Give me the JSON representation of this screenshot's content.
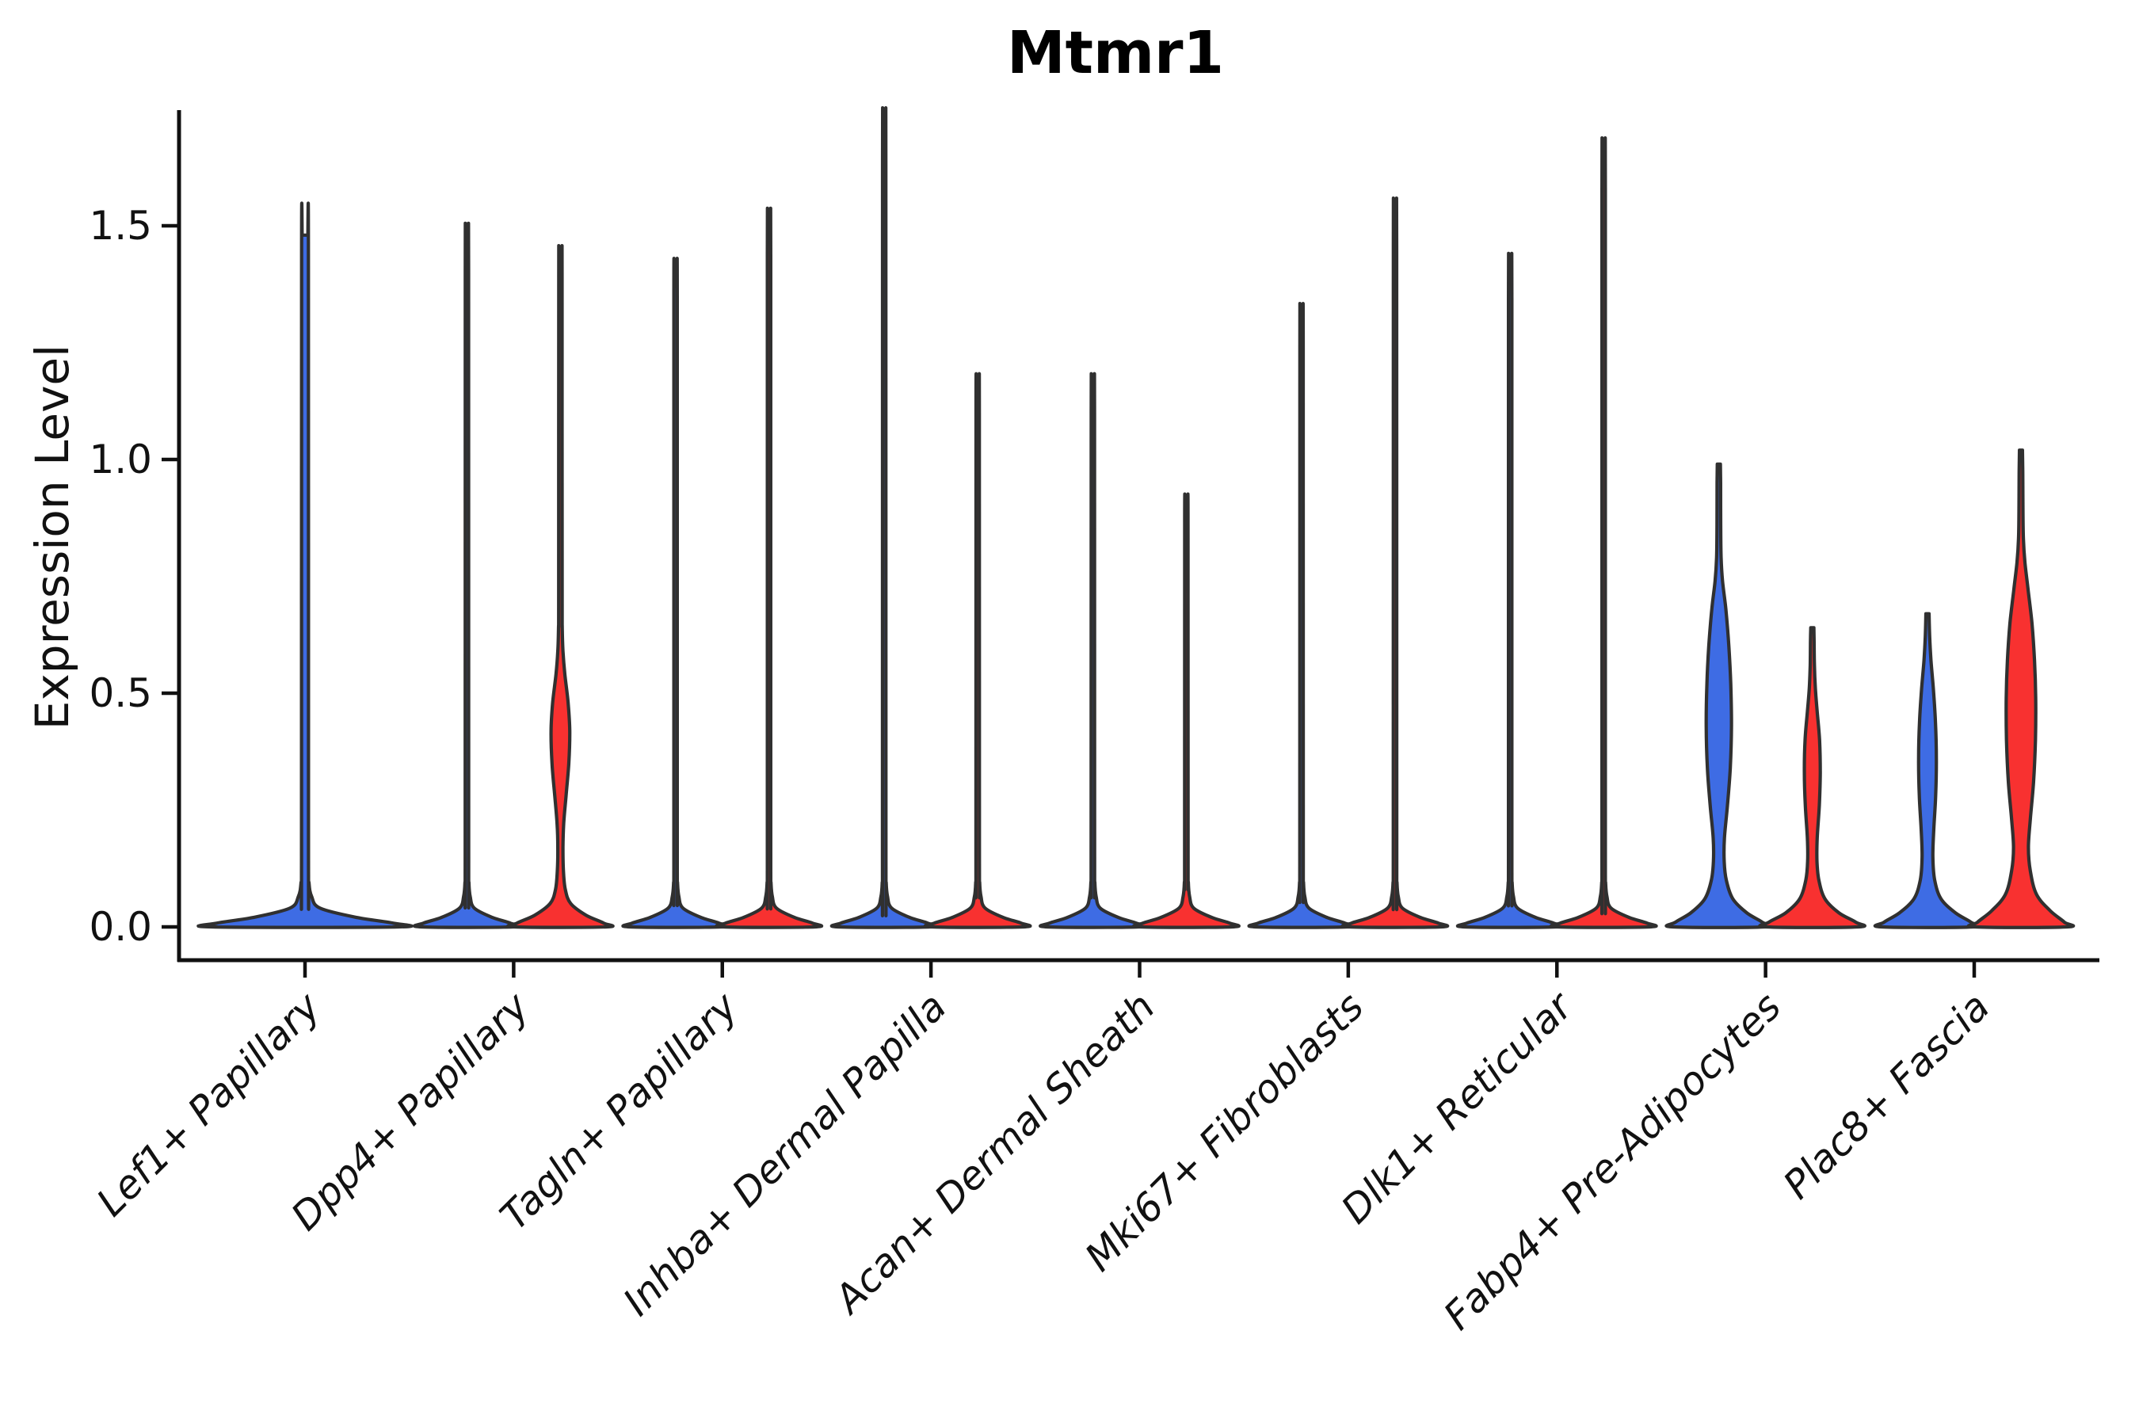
{
  "chart_data": {
    "type": "violin",
    "title": "Mtmr1",
    "ylabel": "Expression Level",
    "xlabel": "",
    "grid": false,
    "legend": "none",
    "yticks": {
      "values": [
        0.0,
        0.5,
        1.0,
        1.5
      ],
      "labels": [
        "0.0",
        "0.5",
        "1.0",
        "1.5"
      ]
    },
    "ylim": [
      -0.07,
      1.75
    ],
    "palette": {
      "blue": "#3E6CE4",
      "red": "#F83130",
      "outline": "#303030",
      "axis": "#111111",
      "text": "#111111"
    },
    "categories": [
      {
        "label": "Lef1+ Papillary",
        "violins": [
          {
            "condition": "single",
            "fill": "blue",
            "max": 1.48,
            "shape": "spike",
            "single": true
          }
        ]
      },
      {
        "label": "Dpp4+ Papillary",
        "violins": [
          {
            "condition": "blue",
            "fill": "blue",
            "max": 1.44,
            "shape": "spike"
          },
          {
            "condition": "red",
            "fill": "red",
            "max": 1.44,
            "shape": "body",
            "profile": [
              [
                0,
                0.98
              ],
              [
                0.008,
                0.93
              ],
              [
                0.025,
                0.55
              ],
              [
                0.05,
                0.22
              ],
              [
                0.08,
                0.105
              ],
              [
                0.12,
                0.065
              ],
              [
                0.17,
                0.055
              ],
              [
                0.22,
                0.07
              ],
              [
                0.28,
                0.12
              ],
              [
                0.35,
                0.18
              ],
              [
                0.42,
                0.2
              ],
              [
                0.48,
                0.165
              ],
              [
                0.54,
                0.095
              ],
              [
                0.59,
                0.055
              ],
              [
                0.64,
                0.04
              ],
              [
                0.72,
                0.037
              ],
              [
                1.39,
                0.036
              ],
              [
                1.44,
                0.033
              ]
            ]
          }
        ]
      },
      {
        "label": "Tagln+ Papillary",
        "violins": [
          {
            "condition": "blue",
            "fill": "blue",
            "max": 1.37,
            "shape": "spike"
          },
          {
            "condition": "red",
            "fill": "red",
            "max": 1.47,
            "shape": "spike"
          }
        ]
      },
      {
        "label": "Inhba+ Dermal Papilla",
        "violins": [
          {
            "condition": "blue",
            "fill": "blue",
            "max": 1.67,
            "shape": "spike"
          },
          {
            "condition": "red",
            "fill": "red",
            "max": 1.14,
            "shape": "spike"
          }
        ]
      },
      {
        "label": "Acan+ Dermal Sheath",
        "violins": [
          {
            "condition": "blue",
            "fill": "blue",
            "max": 1.14,
            "shape": "spike"
          },
          {
            "condition": "red",
            "fill": "red",
            "max": 0.9,
            "shape": "spike"
          }
        ]
      },
      {
        "label": "Mki67+ Fibroblasts",
        "violins": [
          {
            "condition": "blue",
            "fill": "blue",
            "max": 1.28,
            "shape": "spike"
          },
          {
            "condition": "red",
            "fill": "red",
            "max": 1.49,
            "shape": "spike"
          }
        ]
      },
      {
        "label": "Dlk1+ Reticular",
        "violins": [
          {
            "condition": "blue",
            "fill": "blue",
            "max": 1.38,
            "shape": "spike"
          },
          {
            "condition": "red",
            "fill": "red",
            "max": 1.61,
            "shape": "spike"
          }
        ]
      },
      {
        "label": "Fabp4+ Pre-Adipocytes",
        "violins": [
          {
            "condition": "blue",
            "fill": "blue",
            "max": 0.99,
            "shape": "body",
            "profile": [
              [
                0,
                0.98
              ],
              [
                0.01,
                0.93
              ],
              [
                0.03,
                0.6
              ],
              [
                0.06,
                0.3
              ],
              [
                0.1,
                0.16
              ],
              [
                0.14,
                0.115
              ],
              [
                0.19,
                0.12
              ],
              [
                0.26,
                0.185
              ],
              [
                0.34,
                0.245
              ],
              [
                0.43,
                0.27
              ],
              [
                0.52,
                0.255
              ],
              [
                0.6,
                0.215
              ],
              [
                0.68,
                0.15
              ],
              [
                0.74,
                0.08
              ],
              [
                0.79,
                0.048
              ],
              [
                0.86,
                0.04
              ],
              [
                0.95,
                0.038
              ],
              [
                0.99,
                0.033
              ]
            ]
          },
          {
            "condition": "red",
            "fill": "red",
            "max": 0.64,
            "shape": "body",
            "profile": [
              [
                0,
                0.98
              ],
              [
                0.01,
                0.93
              ],
              [
                0.03,
                0.57
              ],
              [
                0.06,
                0.27
              ],
              [
                0.1,
                0.14
              ],
              [
                0.14,
                0.1
              ],
              [
                0.19,
                0.105
              ],
              [
                0.26,
                0.15
              ],
              [
                0.33,
                0.17
              ],
              [
                0.4,
                0.155
              ],
              [
                0.46,
                0.105
              ],
              [
                0.51,
                0.065
              ],
              [
                0.56,
                0.045
              ],
              [
                0.61,
                0.039
              ],
              [
                0.64,
                0.033
              ]
            ]
          }
        ]
      },
      {
        "label": "Plac8+ Fascia",
        "violins": [
          {
            "condition": "blue",
            "fill": "blue",
            "max": 0.67,
            "shape": "body",
            "profile": [
              [
                0,
                0.98
              ],
              [
                0.01,
                0.93
              ],
              [
                0.03,
                0.6
              ],
              [
                0.06,
                0.29
              ],
              [
                0.1,
                0.155
              ],
              [
                0.15,
                0.115
              ],
              [
                0.21,
                0.135
              ],
              [
                0.28,
                0.175
              ],
              [
                0.36,
                0.19
              ],
              [
                0.44,
                0.17
              ],
              [
                0.51,
                0.125
              ],
              [
                0.57,
                0.075
              ],
              [
                0.62,
                0.048
              ],
              [
                0.67,
                0.034
              ]
            ]
          },
          {
            "condition": "red",
            "fill": "red",
            "max": 1.02,
            "shape": "body",
            "profile": [
              [
                0,
                0.98
              ],
              [
                0.01,
                0.93
              ],
              [
                0.035,
                0.62
              ],
              [
                0.07,
                0.33
              ],
              [
                0.12,
                0.2
              ],
              [
                0.17,
                0.16
              ],
              [
                0.23,
                0.2
              ],
              [
                0.31,
                0.27
              ],
              [
                0.4,
                0.31
              ],
              [
                0.49,
                0.315
              ],
              [
                0.57,
                0.29
              ],
              [
                0.65,
                0.235
              ],
              [
                0.72,
                0.155
              ],
              [
                0.78,
                0.085
              ],
              [
                0.83,
                0.052
              ],
              [
                0.9,
                0.042
              ],
              [
                0.97,
                0.039
              ],
              [
                1.02,
                0.033
              ]
            ]
          }
        ]
      }
    ]
  }
}
